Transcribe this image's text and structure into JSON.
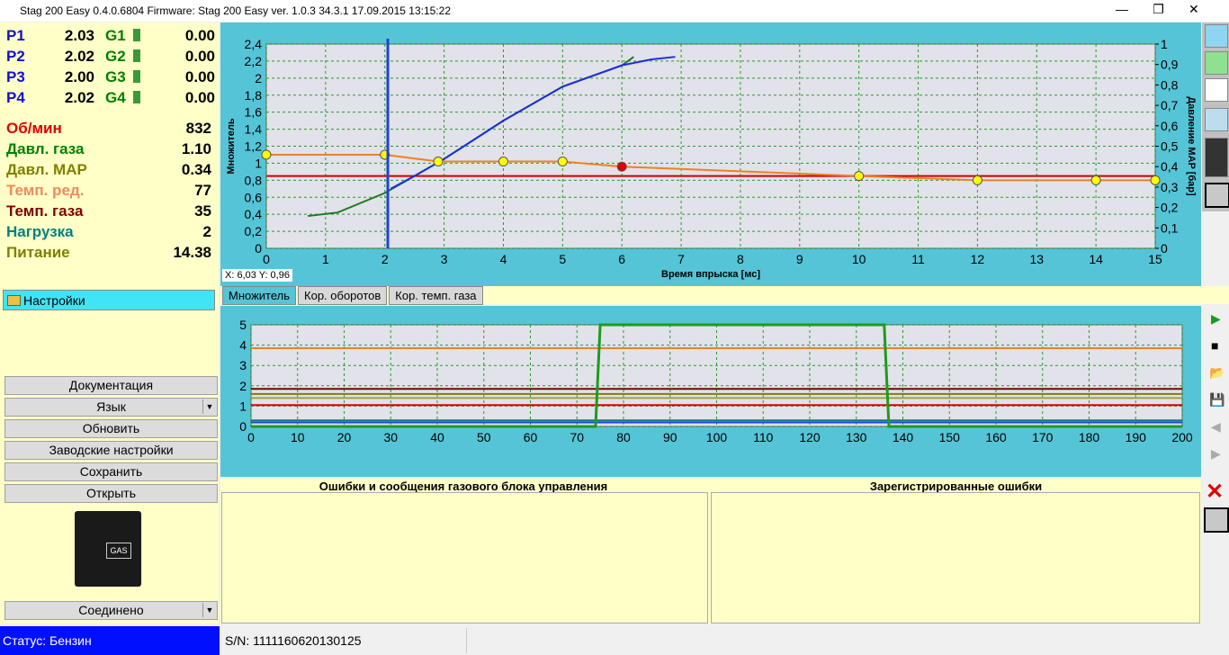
{
  "window_title": "Stag 200 Easy 0.4.0.6804 Firmware: Stag 200 Easy  ver. 1.0.3  34.3.1  17.09.2015 13:15:22",
  "injectors": [
    {
      "p": "P1",
      "pv": "2.03",
      "g": "G1",
      "gv": "0.00"
    },
    {
      "p": "P2",
      "pv": "2.02",
      "g": "G2",
      "gv": "0.00"
    },
    {
      "p": "P3",
      "pv": "2.00",
      "g": "G3",
      "gv": "0.00"
    },
    {
      "p": "P4",
      "pv": "2.02",
      "g": "G4",
      "gv": "0.00"
    }
  ],
  "params": [
    {
      "label": "Об/мин",
      "value": "832",
      "color": "#e00000"
    },
    {
      "label": "Давл. газа",
      "value": "1.10",
      "color": "#008000"
    },
    {
      "label": "Давл. MAP",
      "value": "0.34",
      "color": "#808000"
    },
    {
      "label": "Темп. ред.",
      "value": "77",
      "color": "#f08a5d"
    },
    {
      "label": "Темп. газа",
      "value": "35",
      "color": "#800000"
    },
    {
      "label": "Нагрузка",
      "value": "2",
      "color": "#008080"
    },
    {
      "label": "Питание",
      "value": "14.38",
      "color": "#808000"
    }
  ],
  "settings_button": "Настройки",
  "buttons": [
    "Документация",
    "Язык",
    "Обновить",
    "Заводские настройки",
    "Сохранить",
    "Открыть"
  ],
  "connection": "Соединено",
  "status": "Статус: Бензин",
  "serial": "S/N: 1111160620130125",
  "cursor": "X: 6,03  Y: 0,96",
  "tabs": [
    "Множитель",
    "Кор. оборотов",
    "Кор. темп. газа"
  ],
  "errors_title": "Ошибки и сообщения газового блока управления",
  "registered_title": "Зарегистрированные ошибки",
  "charts": [
    {
      "type": "line",
      "xlabel": "Время впрыска [мс]",
      "ylabel": "Множитель",
      "y2label": "Давление MAP [бар]",
      "xlim": [
        0,
        15
      ],
      "xticks": [
        0,
        1,
        2,
        3,
        4,
        5,
        6,
        7,
        8,
        9,
        10,
        11,
        12,
        13,
        14,
        15
      ],
      "ylim": [
        0,
        2.4
      ],
      "yticks": [
        0,
        {
          "value": 0.2,
          "label": "0,2"
        },
        {
          "value": 0.4,
          "label": "0,4"
        },
        {
          "value": 0.6,
          "label": "0,6"
        },
        {
          "value": 0.8,
          "label": "0,8"
        },
        1,
        {
          "value": 1.2,
          "label": "1,2"
        },
        {
          "value": 1.4,
          "label": "1,4"
        },
        {
          "value": 1.6,
          "label": "1,6"
        },
        {
          "value": 1.8,
          "label": "1,8"
        },
        2,
        {
          "value": 2.2,
          "label": "2,2"
        },
        {
          "value": 2.4,
          "label": "2,4"
        }
      ],
      "y2lim": [
        0,
        1
      ],
      "y2ticks": [
        0,
        {
          "value": 0.1,
          "label": "0,1"
        },
        {
          "value": 0.2,
          "label": "0,2"
        },
        {
          "value": 0.3,
          "label": "0,3"
        },
        {
          "value": 0.4,
          "label": "0,4"
        },
        {
          "value": 0.5,
          "label": "0,5"
        },
        {
          "value": 0.6,
          "label": "0,6"
        },
        {
          "value": 0.7,
          "label": "0,7"
        },
        {
          "value": 0.8,
          "label": "0,8"
        },
        {
          "value": 0.9,
          "label": "0,9"
        },
        1
      ],
      "grid": true,
      "marker_x": 2.05,
      "marker_color": "#2040e0",
      "series": [
        {
          "color": "#cc0000",
          "x": [
            0,
            15
          ],
          "values": [
            0.85,
            0.85
          ]
        },
        {
          "color": "#1f7a1f",
          "x": [
            0.7,
            1.2,
            2,
            2.5,
            3,
            4,
            5,
            6,
            6.2
          ],
          "values": [
            0.38,
            0.42,
            0.65,
            0.85,
            1.05,
            1.5,
            1.9,
            2.15,
            2.25
          ]
        },
        {
          "color": "#1a2ee0",
          "x": [
            2.1,
            2.5,
            3,
            4,
            5,
            6,
            6.5,
            6.9
          ],
          "values": [
            0.7,
            0.85,
            1.05,
            1.5,
            1.9,
            2.15,
            2.22,
            2.25
          ]
        },
        {
          "color": "#f08020",
          "x": [
            0,
            2,
            2.9,
            4,
            5,
            6,
            10,
            12,
            14,
            15
          ],
          "values": [
            1.1,
            1.1,
            1.02,
            1.02,
            1.02,
            0.96,
            0.85,
            0.8,
            0.8,
            0.8
          ],
          "marker_color": "#ffff00",
          "highlight": {
            "index": 5,
            "color": "#e00000"
          }
        }
      ]
    },
    {
      "type": "line",
      "xlim": [
        0,
        200
      ],
      "xticks": [
        0,
        10,
        20,
        30,
        40,
        50,
        60,
        70,
        80,
        90,
        100,
        110,
        120,
        130,
        140,
        150,
        160,
        170,
        180,
        190,
        200
      ],
      "ylim": [
        0,
        5
      ],
      "yticks": [
        0,
        1,
        2,
        3,
        4,
        5
      ],
      "grid": true,
      "series": [
        {
          "color": "#f08020",
          "x": [
            0,
            200
          ],
          "values": [
            3.85,
            3.85
          ]
        },
        {
          "color": "#800000",
          "x": [
            0,
            200
          ],
          "values": [
            1.85,
            1.85
          ]
        },
        {
          "color": "#808000",
          "x": [
            0,
            200
          ],
          "values": [
            1.6,
            1.6
          ]
        },
        {
          "color": "#a0a040",
          "x": [
            0,
            200
          ],
          "values": [
            1.4,
            1.4
          ]
        },
        {
          "color": "#e00000",
          "x": [
            0,
            200
          ],
          "values": [
            1.05,
            1.05
          ]
        },
        {
          "color": "#008080",
          "x": [
            0,
            200
          ],
          "values": [
            0.3,
            0.3
          ]
        },
        {
          "color": "#2040e0",
          "x": [
            0,
            200
          ],
          "values": [
            0.2,
            0.2
          ]
        },
        {
          "color": "#1f9a1f",
          "x": [
            0,
            74,
            75,
            136,
            137,
            200
          ],
          "values": [
            0,
            0,
            5,
            5,
            0,
            0
          ]
        }
      ]
    }
  ]
}
